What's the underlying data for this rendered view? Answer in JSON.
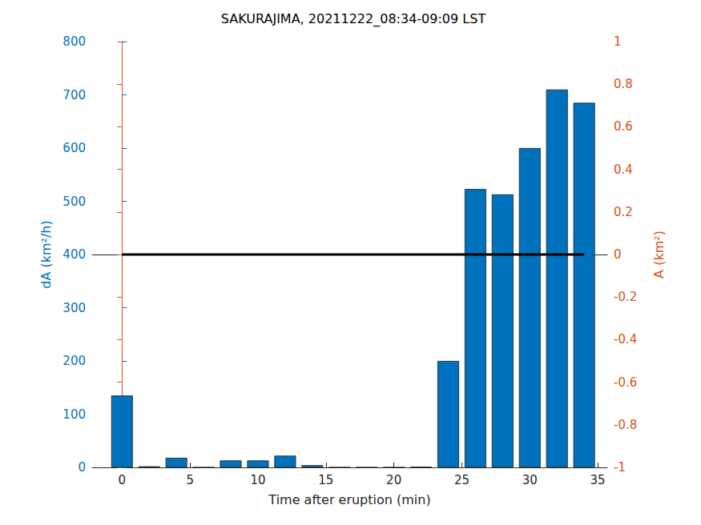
{
  "chart_data": {
    "type": "bar",
    "title": "SAKURAJIMA, 20211222_08:34-09:09 LST",
    "xlabel": "Time after eruption (min)",
    "ylabel": "dA (km²/h)",
    "y2label": "A (km²)",
    "xlim": [
      -2.2,
      35.7
    ],
    "xticks": [
      0,
      5,
      10,
      15,
      20,
      25,
      30,
      35
    ],
    "ylim": [
      0,
      800
    ],
    "yticks": [
      0,
      100,
      200,
      300,
      400,
      500,
      600,
      700,
      800
    ],
    "y2lim": [
      -1,
      1
    ],
    "y2ticks": [
      -1,
      -0.8,
      -0.6,
      -0.4,
      -0.2,
      0,
      0.2,
      0.4,
      0.6,
      0.8,
      1
    ],
    "grid": false,
    "series": [
      {
        "type": "bar",
        "color": "#0072BD",
        "x": [
          0,
          2,
          4,
          6,
          8,
          10,
          12,
          14,
          16,
          18,
          20,
          22,
          24,
          26,
          28,
          30,
          32,
          34
        ],
        "values": [
          135,
          2,
          18,
          0,
          13,
          13,
          22,
          4,
          0,
          0,
          0,
          1,
          200,
          523,
          513,
          600,
          710,
          685
        ]
      },
      {
        "type": "line",
        "axis": "y2",
        "color": "#000000",
        "x": [
          0,
          34
        ],
        "values": [
          0,
          0
        ]
      }
    ]
  }
}
